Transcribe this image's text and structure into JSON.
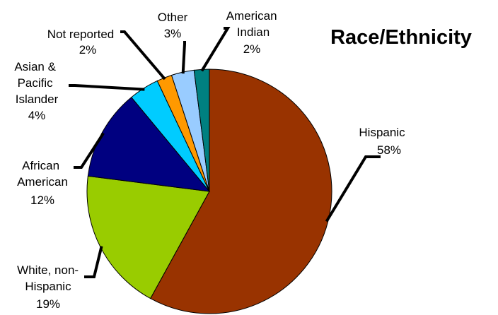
{
  "chart_data": {
    "type": "pie",
    "title": "Race/Ethnicity",
    "slices": [
      {
        "name": "Hispanic",
        "label": "Hispanic",
        "value": 58,
        "display": "58%",
        "color": "#993300"
      },
      {
        "name": "White, non-Hispanic",
        "label": "White, non-Hispanic",
        "value": 19,
        "display": "19%",
        "color": "#99cc00"
      },
      {
        "name": "African American",
        "label": "African American",
        "value": 12,
        "display": "12%",
        "color": "#000080"
      },
      {
        "name": "Asian & Pacific Islander",
        "label": "Asian & Pacific Islander",
        "value": 4,
        "display": "4%",
        "color": "#00ccff"
      },
      {
        "name": "Not reported",
        "label": "Not reported",
        "value": 2,
        "display": "2%",
        "color": "#ff9900"
      },
      {
        "name": "Other",
        "label": "Other",
        "value": 3,
        "display": "3%",
        "color": "#99ccff"
      },
      {
        "name": "American Indian",
        "label": "American Indian",
        "value": 2,
        "display": "2%",
        "color": "#008080"
      }
    ],
    "start_at": "12 o'clock",
    "direction": "clockwise",
    "legend": "none",
    "labels": "outside with leader lines"
  }
}
